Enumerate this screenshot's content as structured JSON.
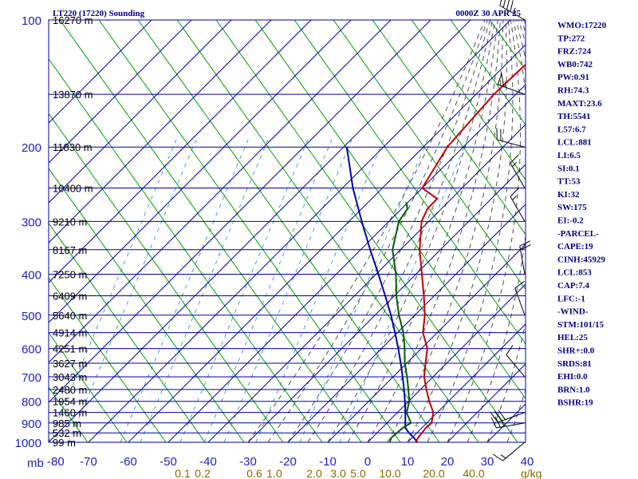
{
  "chart_data": {
    "type": "skew-t",
    "title": "LT220 (17220) Sounding",
    "datetime": "0000Z 30 APR 25",
    "pressure_levels": [
      100,
      200,
      300,
      400,
      500,
      600,
      700,
      800,
      900,
      1000
    ],
    "pressure_unit": "mb",
    "heights": [
      {
        "p": 100,
        "label": "16270 m"
      },
      {
        "p": 150,
        "label": "13870 m"
      },
      {
        "p": 200,
        "label": "11830 m"
      },
      {
        "p": 250,
        "label": "10400 m"
      },
      {
        "p": 300,
        "label": "9210 m"
      },
      {
        "p": 350,
        "label": "8167 m"
      },
      {
        "p": 400,
        "label": "7250 m"
      },
      {
        "p": 450,
        "label": "6409 m"
      },
      {
        "p": 500,
        "label": "5640 m"
      },
      {
        "p": 550,
        "label": "4914 m"
      },
      {
        "p": 600,
        "label": "4251 m"
      },
      {
        "p": 650,
        "label": "3627 m"
      },
      {
        "p": 700,
        "label": "3043 m"
      },
      {
        "p": 750,
        "label": "2480 m"
      },
      {
        "p": 800,
        "label": "1954 m"
      },
      {
        "p": 850,
        "label": "1460 m"
      },
      {
        "p": 900,
        "label": "985 m"
      },
      {
        "p": 950,
        "label": "532 m"
      },
      {
        "p": 1000,
        "label": "99 m"
      }
    ],
    "temp_ticks": [
      -80,
      -70,
      -60,
      -50,
      -40,
      -30,
      -20,
      -10,
      0,
      10,
      20,
      30,
      40
    ],
    "temp_tick_labels": [
      "-80",
      "-70",
      "-60",
      "-50",
      "-40",
      "-30",
      "-20",
      "-10",
      "0",
      "10",
      "20",
      "30",
      "40"
    ],
    "xlim": [
      -80,
      40
    ],
    "ylim": [
      100,
      1000
    ],
    "mixing_ratio_labels": [
      {
        "text": "0.1",
        "x": -80
      },
      {
        "text": "0.2",
        "x": -75
      },
      {
        "text": "0.6",
        "x": -62
      },
      {
        "text": "1.0",
        "x": -57
      },
      {
        "text": "2.0",
        "x": -47
      },
      {
        "text": "3.0",
        "x": -41
      },
      {
        "text": "5.0",
        "x": -36
      },
      {
        "text": "10.0",
        "x": -28
      },
      {
        "text": "20.0",
        "x": -17
      },
      {
        "text": "40.0",
        "x": -7
      }
    ],
    "mixing_ratio_unit": "g/kg",
    "temperature": [
      {
        "p": 1000,
        "t": 12.0
      },
      {
        "p": 975,
        "t": 11.5
      },
      {
        "p": 925,
        "t": 11.0
      },
      {
        "p": 900,
        "t": 11.2
      },
      {
        "p": 850,
        "t": 9.0
      },
      {
        "p": 800,
        "t": 5.2
      },
      {
        "p": 750,
        "t": 1.5
      },
      {
        "p": 700,
        "t": -2.2
      },
      {
        "p": 650,
        "t": -5.3
      },
      {
        "p": 600,
        "t": -8.5
      },
      {
        "p": 550,
        "t": -13.6
      },
      {
        "p": 500,
        "t": -17.5
      },
      {
        "p": 450,
        "t": -22.6
      },
      {
        "p": 400,
        "t": -28.5
      },
      {
        "p": 350,
        "t": -35.2
      },
      {
        "p": 300,
        "t": -41.8
      },
      {
        "p": 280,
        "t": -43.5
      },
      {
        "p": 265,
        "t": -43.6
      },
      {
        "p": 250,
        "t": -50.0
      },
      {
        "p": 200,
        "t": -54.0
      },
      {
        "p": 150,
        "t": -55.5
      },
      {
        "p": 125,
        "t": -55.0
      },
      {
        "p": 100,
        "t": -56.2
      }
    ],
    "dewpoint": [
      {
        "p": 1000,
        "t": 5.5
      },
      {
        "p": 975,
        "t": 4.8
      },
      {
        "p": 925,
        "t": 5.2
      },
      {
        "p": 900,
        "t": 6.0
      },
      {
        "p": 850,
        "t": 2.3
      },
      {
        "p": 800,
        "t": 0.2
      },
      {
        "p": 750,
        "t": -3.0
      },
      {
        "p": 700,
        "t": -6.5
      },
      {
        "p": 650,
        "t": -10.5
      },
      {
        "p": 600,
        "t": -14.2
      },
      {
        "p": 550,
        "t": -18.5
      },
      {
        "p": 500,
        "t": -24.0
      },
      {
        "p": 450,
        "t": -29.5
      },
      {
        "p": 400,
        "t": -35.0
      },
      {
        "p": 350,
        "t": -42.0
      },
      {
        "p": 300,
        "t": -47.5
      },
      {
        "p": 280,
        "t": -48.5
      },
      {
        "p": 270,
        "t": -50.5
      }
    ],
    "parcel": [
      {
        "p": 1000,
        "t": 12.5
      },
      {
        "p": 975,
        "t": 10.4
      },
      {
        "p": 950,
        "t": 8.0
      },
      {
        "p": 925,
        "t": 5.9
      },
      {
        "p": 900,
        "t": 4.6
      },
      {
        "p": 850,
        "t": 2.0
      },
      {
        "p": 800,
        "t": -0.9
      },
      {
        "p": 750,
        "t": -4.1
      },
      {
        "p": 700,
        "t": -7.6
      },
      {
        "p": 650,
        "t": -11.5
      },
      {
        "p": 600,
        "t": -15.8
      },
      {
        "p": 550,
        "t": -20.6
      },
      {
        "p": 500,
        "t": -26.0
      },
      {
        "p": 450,
        "t": -32.3
      },
      {
        "p": 400,
        "t": -39.4
      },
      {
        "p": 350,
        "t": -47.6
      },
      {
        "p": 300,
        "t": -56.8
      },
      {
        "p": 250,
        "t": -67.4
      },
      {
        "p": 200,
        "t": -79.2
      }
    ],
    "wind_barbs": [
      {
        "p": 100,
        "dir": 300,
        "spd": 45
      },
      {
        "p": 150,
        "dir": 290,
        "spd": 55
      },
      {
        "p": 200,
        "dir": 285,
        "spd": 20
      },
      {
        "p": 250,
        "dir": 330,
        "spd": 15
      },
      {
        "p": 300,
        "dir": 330,
        "spd": 15
      },
      {
        "p": 400,
        "dir": 350,
        "spd": 20
      },
      {
        "p": 500,
        "dir": 340,
        "spd": 10
      },
      {
        "p": 700,
        "dir": 320,
        "spd": 10
      },
      {
        "p": 850,
        "dir": 250,
        "spd": 30
      },
      {
        "p": 900,
        "dir": 260,
        "spd": 25
      },
      {
        "p": 1000,
        "dir": 230,
        "spd": 15
      }
    ]
  },
  "indices": [
    "WMO:17220",
    "TP:272",
    "FRZ:724",
    "WB0:742",
    "PW:0.91",
    "RH:74.3",
    "MAXT:23.6",
    "TH:5541",
    "L57:6.7",
    "LCL:881",
    "LI:6.5",
    "SI:0.1",
    "TT:53",
    "KI:32",
    "SW:175",
    "EI:-0.2",
    "-PARCEL-",
    "CAPE:19",
    "CINH:45929",
    "LCL:853",
    "CAP:7.4",
    "LFC:-1",
    "-WIND-",
    "STM:101/15",
    "HEL:25",
    "SHR+:0.0",
    "SRDS:81",
    "EHI:0.0",
    "BRN:1.0",
    "BSHR:19"
  ],
  "colors": {
    "grid": "#0000a8",
    "isotherm": "#0000a8",
    "dry_adiabat": "#00a000",
    "moist_adiabat": "#505050",
    "mixing_ratio": "#40a0e0",
    "temperature": "#c00000",
    "dewpoint": "#005a00",
    "parcel": "#0000b0",
    "pressure_label": "#2020c0",
    "mixing_label": "#8b6a00",
    "header": "#00008b"
  }
}
